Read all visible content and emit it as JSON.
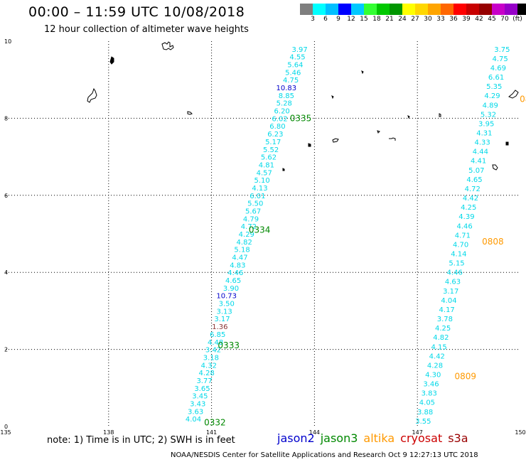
{
  "title": "00:00 – 11:59 UTC 10/08/2018",
  "subtitle": "12 hour collection of altimeter wave heights",
  "colorbar": {
    "colors": [
      "#7f7f7f",
      "#00ffff",
      "#00bfff",
      "#0000ff",
      "#00c8ff",
      "#33ff33",
      "#00c800",
      "#009600",
      "#ffff00",
      "#ffd700",
      "#ffa500",
      "#ff6600",
      "#ff0000",
      "#c80000",
      "#960000",
      "#c800c8",
      "#9600c8",
      "#000000"
    ],
    "labels": [
      "3",
      "6",
      "9",
      "12",
      "15",
      "18",
      "21",
      "24",
      "27",
      "30",
      "33",
      "36",
      "39",
      "42",
      "45",
      "70",
      "(ft)"
    ]
  },
  "axes": {
    "lon_ticks": [
      "135",
      "138",
      "141",
      "144",
      "147",
      "150"
    ],
    "lat_ticks": [
      "0",
      "2",
      "4",
      "6",
      "8",
      "10"
    ]
  },
  "tracks": [
    {
      "id": "0332",
      "satellite": "jason3",
      "x0": 140.7,
      "y0": 0.2,
      "x1": 143.8,
      "y1": 9.8,
      "values": [
        "4.04",
        "3.63",
        "3.43",
        "3.45",
        "3.65",
        "3.77",
        "4.28",
        "4.32",
        "3.18",
        "3.42",
        "4.48",
        "6.85",
        "1.36",
        "3.17",
        "3.13",
        "3.50",
        "10.73",
        "3.90",
        "4.65",
        "4.46",
        "4.83",
        "4.47",
        "5.18",
        "4.82",
        "4.29",
        "4.72",
        "4.79",
        "5.67",
        "5.50",
        "6.01",
        "4.13",
        "5.10",
        "4.57",
        "4.81",
        "5.62",
        "5.52",
        "5.17",
        "6.23",
        "6.80",
        "6.02",
        "6.20",
        "5.28",
        "8.85",
        "10.83",
        "4.75",
        "5.46",
        "5.64",
        "4.55",
        "3.97"
      ],
      "labels": [
        {
          "text": "0332",
          "x": 140.7,
          "y": 0.1
        },
        {
          "text": "0333",
          "x": 141.1,
          "y": 2.1
        },
        {
          "text": "0334",
          "x": 142.0,
          "y": 5.1
        },
        {
          "text": "0335",
          "x": 143.2,
          "y": 8.0
        }
      ]
    },
    {
      "id": "0808",
      "satellite": "altika",
      "x0": 147.4,
      "y0": 0.15,
      "x1": 149.7,
      "y1": 9.8,
      "values": [
        "3.55",
        "3.88",
        "4.05",
        "3.83",
        "3.46",
        "4.30",
        "4.28",
        "4.42",
        "4.15",
        "4.82",
        "4.25",
        "3.78",
        "4.17",
        "4.04",
        "3.17",
        "4.63",
        "4.46",
        "5.15",
        "4.14",
        "4.70",
        "4.71",
        "4.46",
        "4.39",
        "4.25",
        "4.42",
        "4.72",
        "4.65",
        "5.07",
        "4.41",
        "4.44",
        "4.33",
        "4.31",
        "3.95",
        "5.32",
        "4.89",
        "4.29",
        "5.35",
        "6.61",
        "4.69",
        "4.75",
        "3.75"
      ],
      "labels": [
        {
          "text": "0809",
          "x": 148.0,
          "y": 1.3
        },
        {
          "text": "0808",
          "x": 148.8,
          "y": 4.8
        },
        {
          "text": "08",
          "x": 149.9,
          "y": 8.5
        }
      ]
    }
  ],
  "note": "note: 1) Time is in UTC; 2) SWH is in feet",
  "legend": [
    {
      "name": "jason2",
      "color": "#0000cc"
    },
    {
      "name": "jason3",
      "color": "#008800"
    },
    {
      "name": "altika",
      "color": "#ff9900"
    },
    {
      "name": "cryosat",
      "color": "#cc0000"
    },
    {
      "name": "s3a",
      "color": "#990000"
    }
  ],
  "footer": "NOAA/NESDIS Center for Satellite Applications and Research   Oct  9 12:27:13 UTC 2018"
}
